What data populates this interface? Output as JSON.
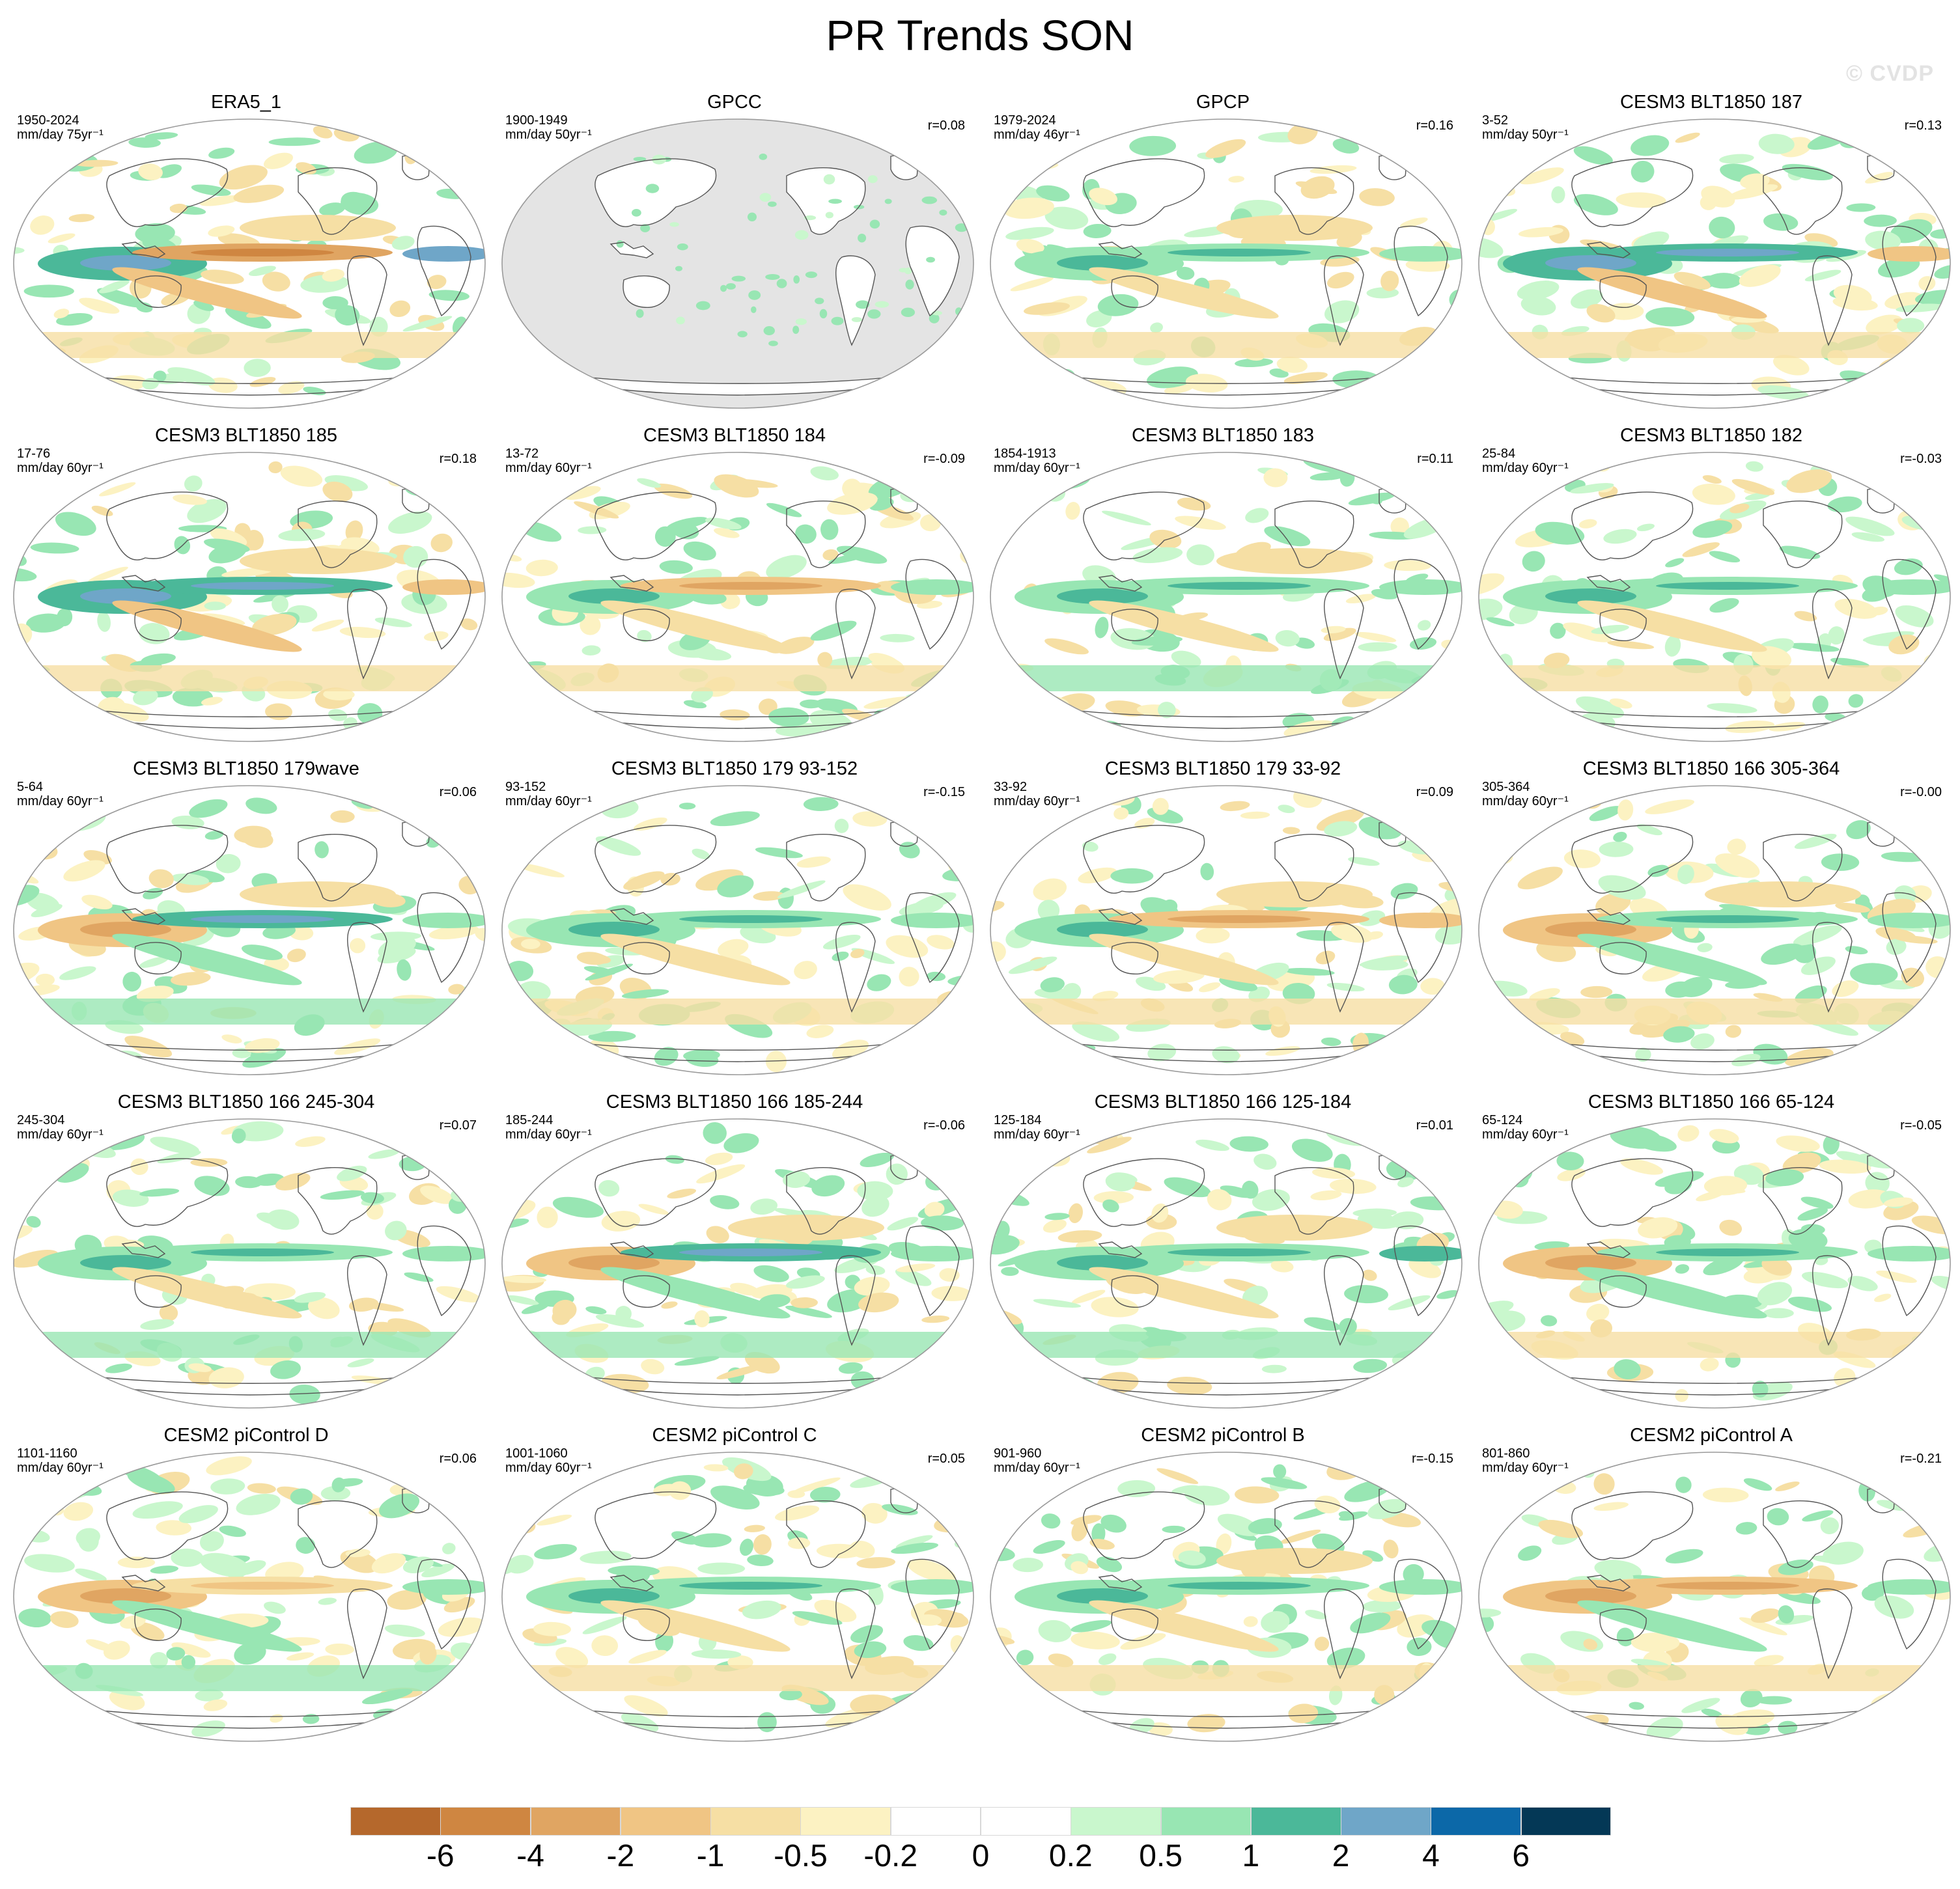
{
  "title": "PR Trends SON",
  "watermark": "© CVDP",
  "colors": {
    "ocean_masked": "#e4e4e4",
    "coast": "#555555",
    "outline": "#9a9a9a"
  },
  "panels": [
    {
      "title": "ERA5_1",
      "period": "1950-2024",
      "units": "mm/day 75yr⁻¹",
      "r": "",
      "masked": false,
      "pattern": {
        "warm_pool": 3,
        "eq_pac": -5,
        "eq_atl": 4,
        "east_pac_warm": true
      }
    },
    {
      "title": "GPCC",
      "period": "1900-1949",
      "units": "mm/day 50yr⁻¹",
      "r": "r=0.08",
      "masked": true,
      "pattern": {
        "warm_pool": 0,
        "eq_pac": 0,
        "eq_atl": 0,
        "east_pac_warm": false
      }
    },
    {
      "title": "GPCP",
      "period": "1979-2024",
      "units": "mm/day 46yr⁻¹",
      "r": "r=0.16",
      "masked": false,
      "pattern": {
        "warm_pool": 2,
        "eq_pac": 2,
        "eq_atl": 1,
        "east_pac_warm": true
      }
    },
    {
      "title": "CESM3 BLT1850 187",
      "period": "3-52",
      "units": "mm/day 50yr⁻¹",
      "r": "r=0.13",
      "masked": false,
      "pattern": {
        "warm_pool": 3,
        "eq_pac": 3,
        "eq_atl": -1,
        "east_pac_warm": false
      }
    },
    {
      "title": "CESM3 BLT1850 185",
      "period": "17-76",
      "units": "mm/day 60yr⁻¹",
      "r": "r=0.18",
      "masked": false,
      "pattern": {
        "warm_pool": 3,
        "eq_pac": 3,
        "eq_atl": -1,
        "east_pac_warm": true
      }
    },
    {
      "title": "CESM3 BLT1850 184",
      "period": "13-72",
      "units": "mm/day 60yr⁻¹",
      "r": "r=-0.09",
      "masked": false,
      "pattern": {
        "warm_pool": 2,
        "eq_pac": -2,
        "eq_atl": 1,
        "east_pac_warm": false
      }
    },
    {
      "title": "CESM3 BLT1850 183",
      "period": "1854-1913",
      "units": "mm/day 60yr⁻¹",
      "r": "r=0.11",
      "masked": false,
      "pattern": {
        "warm_pool": 2,
        "eq_pac": 2,
        "eq_atl": 1,
        "east_pac_warm": true
      }
    },
    {
      "title": "CESM3 BLT1850 182",
      "period": "25-84",
      "units": "mm/day 60yr⁻¹",
      "r": "r=-0.03",
      "masked": false,
      "pattern": {
        "warm_pool": 2,
        "eq_pac": 2,
        "eq_atl": 1,
        "east_pac_warm": false
      }
    },
    {
      "title": "CESM3 BLT1850 179wave",
      "period": "5-64",
      "units": "mm/day 60yr⁻¹",
      "r": "r=0.06",
      "masked": false,
      "pattern": {
        "warm_pool": -2,
        "eq_pac": 3,
        "eq_atl": 1,
        "east_pac_warm": true
      }
    },
    {
      "title": "CESM3 BLT1850 179 93-152",
      "period": "93-152",
      "units": "mm/day 60yr⁻¹",
      "r": "r=-0.15",
      "masked": false,
      "pattern": {
        "warm_pool": 2,
        "eq_pac": 2,
        "eq_atl": 1,
        "east_pac_warm": false
      }
    },
    {
      "title": "CESM3 BLT1850 179 33-92",
      "period": "33-92",
      "units": "mm/day 60yr⁻¹",
      "r": "r=0.09",
      "masked": false,
      "pattern": {
        "warm_pool": 2,
        "eq_pac": -2,
        "eq_atl": -1,
        "east_pac_warm": true
      }
    },
    {
      "title": "CESM3 BLT1850 166 305-364",
      "period": "305-364",
      "units": "mm/day 60yr⁻¹",
      "r": "r=-0.00",
      "masked": false,
      "pattern": {
        "warm_pool": -2,
        "eq_pac": 2,
        "eq_atl": 1,
        "east_pac_warm": true
      }
    },
    {
      "title": "CESM3 BLT1850 166 245-304",
      "period": "245-304",
      "units": "mm/day 60yr⁻¹",
      "r": "r=0.07",
      "masked": false,
      "pattern": {
        "warm_pool": 2,
        "eq_pac": 2,
        "eq_atl": 1,
        "east_pac_warm": false
      }
    },
    {
      "title": "CESM3 BLT1850 166 185-244",
      "period": "185-244",
      "units": "mm/day 60yr⁻¹",
      "r": "r=-0.06",
      "masked": false,
      "pattern": {
        "warm_pool": -2,
        "eq_pac": 3,
        "eq_atl": 1,
        "east_pac_warm": true
      }
    },
    {
      "title": "CESM3 BLT1850 166 125-184",
      "period": "125-184",
      "units": "mm/day 60yr⁻¹",
      "r": "r=0.01",
      "masked": false,
      "pattern": {
        "warm_pool": 2,
        "eq_pac": 2,
        "eq_atl": 2,
        "east_pac_warm": true
      }
    },
    {
      "title": "CESM3 BLT1850 166 65-124",
      "period": "65-124",
      "units": "mm/day 60yr⁻¹",
      "r": "r=-0.05",
      "masked": false,
      "pattern": {
        "warm_pool": -2,
        "eq_pac": 2,
        "eq_atl": 1,
        "east_pac_warm": false
      }
    },
    {
      "title": "CESM2 piControl D",
      "period": "1101-1160",
      "units": "mm/day 60yr⁻¹",
      "r": "r=0.06",
      "masked": false,
      "pattern": {
        "warm_pool": -2,
        "eq_pac": -1,
        "eq_atl": 1,
        "east_pac_warm": false
      }
    },
    {
      "title": "CESM2 piControl C",
      "period": "1001-1060",
      "units": "mm/day 60yr⁻¹",
      "r": "r=0.05",
      "masked": false,
      "pattern": {
        "warm_pool": 2,
        "eq_pac": 2,
        "eq_atl": 1,
        "east_pac_warm": false
      }
    },
    {
      "title": "CESM2 piControl B",
      "period": "901-960",
      "units": "mm/day 60yr⁻¹",
      "r": "r=-0.15",
      "masked": false,
      "pattern": {
        "warm_pool": 2,
        "eq_pac": 2,
        "eq_atl": 1,
        "east_pac_warm": true
      }
    },
    {
      "title": "CESM2 piControl A",
      "period": "801-860",
      "units": "mm/day 60yr⁻¹",
      "r": "r=-0.21",
      "masked": false,
      "pattern": {
        "warm_pool": -2,
        "eq_pac": -2,
        "eq_atl": 1,
        "east_pac_warm": false
      }
    }
  ],
  "colorbar": {
    "colors": [
      "#b5682c",
      "#cf8641",
      "#e0a562",
      "#f0c584",
      "#f6dfa4",
      "#fcf2c2",
      "#ffffff",
      "#ffffff",
      "#c9f7cd",
      "#98e6b3",
      "#4bb899",
      "#6fa6c8",
      "#0c68a8",
      "#043856"
    ],
    "labels": [
      "-6",
      "-4",
      "-2",
      "-1",
      "-0.5",
      "-0.2",
      "0",
      "0.2",
      "0.5",
      "1",
      "2",
      "4",
      "6"
    ]
  }
}
